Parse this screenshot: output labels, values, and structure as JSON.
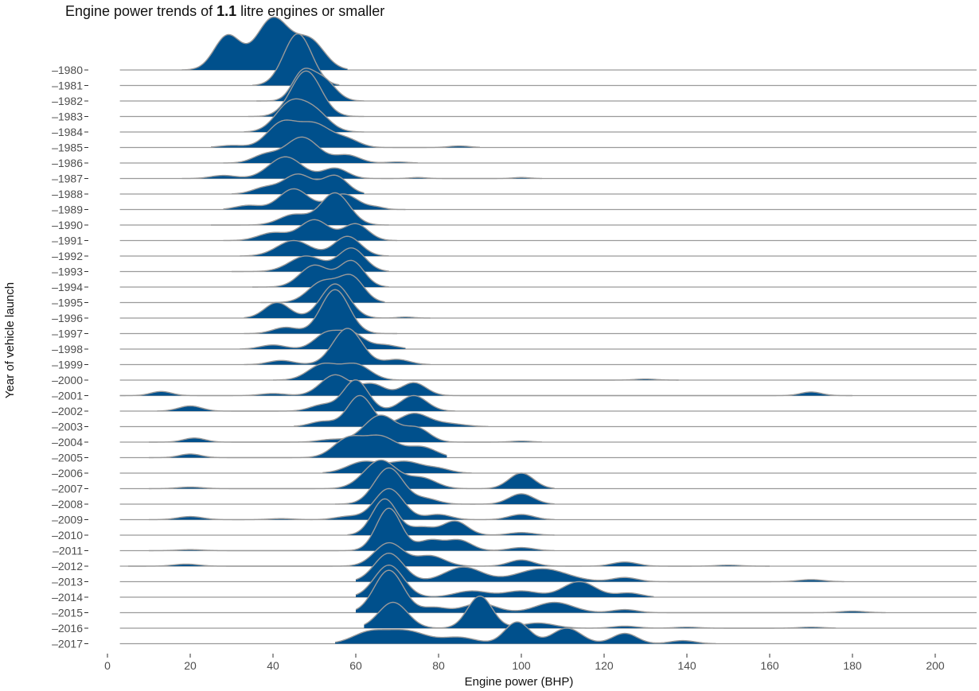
{
  "chart_data": {
    "type": "ridgeline",
    "title": {
      "prefix": "Engine power trends of ",
      "bold": "1.1",
      "suffix": " litre engines or smaller"
    },
    "xlabel": "Engine power (BHP)",
    "ylabel": "Year of vehicle launch",
    "xlim": [
      0,
      210
    ],
    "xticks": [
      0,
      20,
      40,
      60,
      80,
      100,
      120,
      140,
      160,
      180,
      200
    ],
    "x_range_drawn": [
      3,
      210
    ],
    "fill_color": "#00508c",
    "line_color": "#9a9a9a",
    "grid": false,
    "legend": "none",
    "ridges": [
      {
        "year": "1980",
        "peaks": [
          [
            29,
            0.66,
            3.2
          ],
          [
            40,
            1.0,
            4.0
          ],
          [
            49,
            0.55,
            3.5
          ]
        ],
        "range": [
          18,
          58
        ]
      },
      {
        "year": "1981",
        "peaks": [
          [
            46,
            1.0,
            3.4
          ]
        ],
        "range": [
          35,
          56
        ]
      },
      {
        "year": "1982",
        "peaks": [
          [
            47,
            0.5,
            2.5
          ],
          [
            52,
            0.42,
            3.0
          ]
        ],
        "range": [
          36,
          62
        ]
      },
      {
        "year": "1983",
        "peaks": [
          [
            48,
            0.88,
            3.6
          ]
        ],
        "range": [
          34,
          62
        ]
      },
      {
        "year": "1984",
        "peaks": [
          [
            44,
            0.52,
            3.5
          ],
          [
            50,
            0.38,
            3.5
          ]
        ],
        "range": [
          33,
          62
        ]
      },
      {
        "year": "1985",
        "peaks": [
          [
            30,
            0.04,
            3
          ],
          [
            42,
            0.45,
            3.5
          ],
          [
            50,
            0.45,
            4
          ],
          [
            58,
            0.14,
            3
          ],
          [
            85,
            0.03,
            2.5
          ]
        ],
        "range": [
          25,
          90
        ]
      },
      {
        "year": "1986",
        "peaks": [
          [
            38,
            0.15,
            3
          ],
          [
            47,
            0.5,
            4
          ],
          [
            58,
            0.15,
            3
          ],
          [
            70,
            0.02,
            2.5
          ]
        ],
        "range": [
          28,
          75
        ]
      },
      {
        "year": "1987",
        "peaks": [
          [
            28,
            0.06,
            3
          ],
          [
            43,
            0.42,
            4
          ],
          [
            55,
            0.2,
            3
          ],
          [
            75,
            0.02,
            2
          ],
          [
            100,
            0.02,
            2
          ]
        ],
        "range": [
          18,
          105
        ]
      },
      {
        "year": "1988",
        "peaks": [
          [
            38,
            0.12,
            3
          ],
          [
            46,
            0.38,
            3.5
          ],
          [
            55,
            0.35,
            3
          ]
        ],
        "range": [
          30,
          62
        ]
      },
      {
        "year": "1989",
        "peaks": [
          [
            34,
            0.08,
            3
          ],
          [
            45,
            0.4,
            3.5
          ],
          [
            57,
            0.3,
            3.5
          ],
          [
            65,
            0.04,
            2
          ]
        ],
        "range": [
          28,
          72
        ]
      },
      {
        "year": "1990",
        "peaks": [
          [
            45,
            0.2,
            3.5
          ],
          [
            55,
            0.62,
            3.5
          ]
        ],
        "range": [
          25,
          68
        ]
      },
      {
        "year": "1991",
        "peaks": [
          [
            40,
            0.15,
            3.5
          ],
          [
            50,
            0.4,
            3.5
          ],
          [
            60,
            0.32,
            3
          ]
        ],
        "range": [
          28,
          70
        ]
      },
      {
        "year": "1992",
        "peaks": [
          [
            45,
            0.3,
            4
          ],
          [
            58,
            0.38,
            3.2
          ]
        ],
        "range": [
          32,
          68
        ]
      },
      {
        "year": "1993",
        "peaks": [
          [
            48,
            0.3,
            4
          ],
          [
            59,
            0.45,
            3.2
          ]
        ],
        "range": [
          30,
          68
        ]
      },
      {
        "year": "1994",
        "peaks": [
          [
            50,
            0.42,
            3.5
          ],
          [
            59,
            0.5,
            3
          ]
        ],
        "range": [
          35,
          68
        ]
      },
      {
        "year": "1995",
        "peaks": [
          [
            52,
            0.4,
            3.5
          ],
          [
            59,
            0.48,
            3
          ]
        ],
        "range": [
          37,
          67
        ]
      },
      {
        "year": "1996",
        "peaks": [
          [
            41,
            0.3,
            3
          ],
          [
            55,
            0.66,
            3.4
          ],
          [
            72,
            0.02,
            2
          ]
        ],
        "range": [
          33,
          78
        ]
      },
      {
        "year": "1997",
        "peaks": [
          [
            43,
            0.12,
            3
          ],
          [
            55,
            0.85,
            3.4
          ]
        ],
        "range": [
          33,
          70
        ]
      },
      {
        "year": "1998",
        "peaks": [
          [
            40,
            0.08,
            3
          ],
          [
            53,
            0.3,
            3
          ],
          [
            59,
            0.3,
            3
          ],
          [
            67,
            0.08,
            3
          ]
        ],
        "range": [
          32,
          72
        ]
      },
      {
        "year": "1999",
        "peaks": [
          [
            42,
            0.08,
            3
          ],
          [
            58,
            0.7,
            3.5
          ],
          [
            70,
            0.1,
            3
          ]
        ],
        "range": [
          33,
          78
        ]
      },
      {
        "year": "2000",
        "peaks": [
          [
            52,
            0.3,
            3.5
          ],
          [
            60,
            0.3,
            3.5
          ],
          [
            130,
            0.02,
            2.5
          ]
        ],
        "range": [
          40,
          138
        ]
      },
      {
        "year": "2001",
        "peaks": [
          [
            13,
            0.08,
            2.5
          ],
          [
            40,
            0.04,
            3
          ],
          [
            55,
            0.4,
            3.5
          ],
          [
            64,
            0.22,
            3
          ],
          [
            74,
            0.25,
            3
          ],
          [
            170,
            0.07,
            2.5
          ]
        ],
        "range": [
          3,
          180
        ]
      },
      {
        "year": "2002",
        "peaks": [
          [
            20,
            0.1,
            2.8
          ],
          [
            52,
            0.12,
            3
          ],
          [
            60,
            0.6,
            3
          ],
          [
            74,
            0.3,
            3.2
          ]
        ],
        "range": [
          12,
          84
        ]
      },
      {
        "year": "2003",
        "peaks": [
          [
            52,
            0.1,
            3
          ],
          [
            61,
            0.6,
            3
          ],
          [
            74,
            0.25,
            3.5
          ],
          [
            82,
            0.06,
            4
          ]
        ],
        "range": [
          45,
          92
        ]
      },
      {
        "year": "2004",
        "peaks": [
          [
            21,
            0.08,
            2.6
          ],
          [
            54,
            0.05,
            3
          ],
          [
            66,
            0.52,
            4
          ],
          [
            75,
            0.25,
            3
          ],
          [
            100,
            0.02,
            2.5
          ]
        ],
        "range": [
          10,
          105
        ]
      },
      {
        "year": "2005",
        "peaks": [
          [
            20,
            0.07,
            2.6
          ],
          [
            58,
            0.35,
            3.5
          ],
          [
            66,
            0.4,
            4
          ],
          [
            76,
            0.2,
            3.5
          ]
        ],
        "range": [
          10,
          82
        ]
      },
      {
        "year": "2006",
        "peaks": [
          [
            62,
            0.22,
            4
          ],
          [
            72,
            0.22,
            4
          ],
          [
            80,
            0.08,
            3
          ]
        ],
        "range": [
          52,
          88
        ]
      },
      {
        "year": "2007",
        "peaks": [
          [
            20,
            0.03,
            3
          ],
          [
            66,
            0.55,
            4
          ],
          [
            76,
            0.2,
            3.5
          ],
          [
            100,
            0.3,
            3
          ]
        ],
        "range": [
          10,
          108
        ]
      },
      {
        "year": "2008",
        "peaks": [
          [
            68,
            0.7,
            3.5
          ],
          [
            77,
            0.1,
            3
          ],
          [
            100,
            0.2,
            3
          ]
        ],
        "range": [
          55,
          108
        ]
      },
      {
        "year": "2009",
        "peaks": [
          [
            20,
            0.06,
            3
          ],
          [
            42,
            0.02,
            3
          ],
          [
            58,
            0.06,
            3
          ],
          [
            68,
            0.6,
            3.5
          ],
          [
            80,
            0.1,
            3
          ],
          [
            100,
            0.1,
            3
          ]
        ],
        "range": [
          10,
          108
        ]
      },
      {
        "year": "2010",
        "peaks": [
          [
            67,
            0.7,
            3
          ],
          [
            76,
            0.15,
            3
          ],
          [
            84,
            0.27,
            3
          ],
          [
            100,
            0.05,
            3
          ]
        ],
        "range": [
          58,
          108
        ]
      },
      {
        "year": "2011",
        "peaks": [
          [
            20,
            0.02,
            3
          ],
          [
            68,
            0.82,
            3
          ],
          [
            78,
            0.2,
            3
          ],
          [
            85,
            0.2,
            3
          ],
          [
            100,
            0.06,
            3
          ]
        ],
        "range": [
          10,
          108
        ]
      },
      {
        "year": "2012",
        "peaks": [
          [
            19,
            0.04,
            3
          ],
          [
            68,
            0.45,
            3.5
          ],
          [
            78,
            0.2,
            3.5
          ],
          [
            100,
            0.12,
            3
          ],
          [
            125,
            0.08,
            3
          ],
          [
            150,
            0.02,
            3
          ]
        ],
        "range": [
          5,
          160
        ]
      },
      {
        "year": "2013",
        "peaks": [
          [
            68,
            0.55,
            3.5
          ],
          [
            86,
            0.28,
            4.5
          ],
          [
            105,
            0.25,
            6
          ],
          [
            125,
            0.08,
            3
          ],
          [
            170,
            0.04,
            3
          ]
        ],
        "range": [
          60,
          178
        ]
      },
      {
        "year": "2014",
        "peaks": [
          [
            68,
            0.62,
            3.5
          ],
          [
            88,
            0.12,
            4
          ],
          [
            100,
            0.12,
            4
          ],
          [
            114,
            0.3,
            4
          ],
          [
            126,
            0.08,
            3
          ]
        ],
        "range": [
          60,
          132
        ]
      },
      {
        "year": "2015",
        "peaks": [
          [
            68,
            0.82,
            3.5
          ],
          [
            79,
            0.1,
            3
          ],
          [
            90,
            0.18,
            4
          ],
          [
            108,
            0.2,
            4.5
          ],
          [
            125,
            0.06,
            3
          ],
          [
            180,
            0.03,
            3
          ]
        ],
        "range": [
          60,
          188
        ]
      },
      {
        "year": "2016",
        "peaks": [
          [
            69,
            0.5,
            3.5
          ],
          [
            90,
            0.62,
            3
          ],
          [
            104,
            0.1,
            4
          ],
          [
            125,
            0.04,
            3
          ],
          [
            140,
            0.02,
            3
          ],
          [
            170,
            0.02,
            3
          ]
        ],
        "range": [
          62,
          176
        ]
      },
      {
        "year": "2017",
        "peaks": [
          [
            63,
            0.2,
            4
          ],
          [
            72,
            0.25,
            5
          ],
          [
            85,
            0.12,
            4
          ],
          [
            99,
            0.42,
            3
          ],
          [
            111,
            0.3,
            3.5
          ],
          [
            125,
            0.2,
            3
          ],
          [
            139,
            0.06,
            3
          ]
        ],
        "range": [
          55,
          147
        ]
      }
    ]
  }
}
